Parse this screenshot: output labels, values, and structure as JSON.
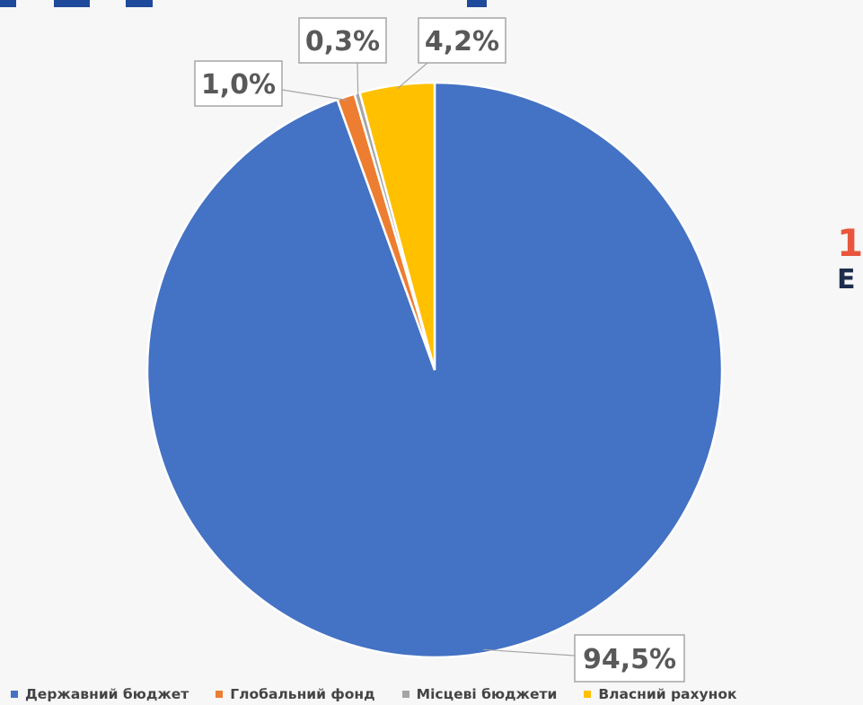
{
  "chart_data": {
    "type": "pie",
    "slices": [
      {
        "name": "Державний бюджет",
        "value": 94.5,
        "label": "94,5%",
        "color": "#4472c4"
      },
      {
        "name": "Глобальний фонд",
        "value": 1.0,
        "label": "1,0%",
        "color": "#ed7d31"
      },
      {
        "name": "Місцеві бюджети",
        "value": 0.3,
        "label": "0,3%",
        "color": "#a5a5a5"
      },
      {
        "name": "Власний рахунок",
        "value": 4.2,
        "label": "4,2%",
        "color": "#ffc000"
      }
    ],
    "legend_position": "bottom",
    "slice_order_note": "clockwise from 12 o'clock starting with Державний бюджет"
  },
  "side_text": {
    "line1": "1",
    "line2": "E"
  }
}
